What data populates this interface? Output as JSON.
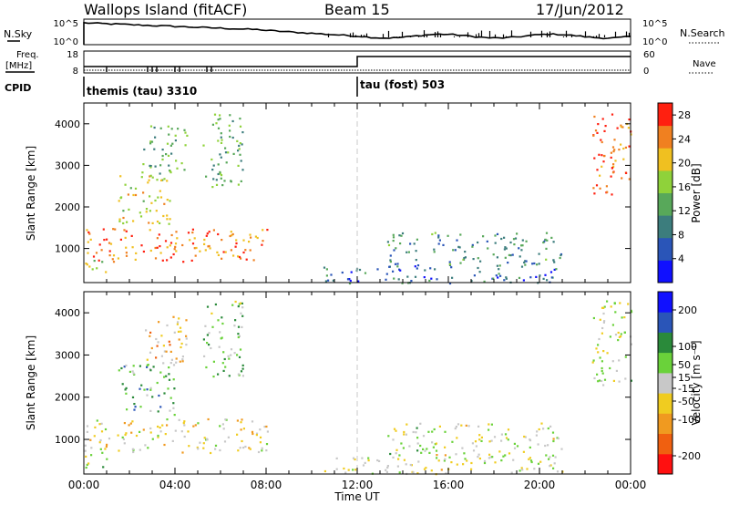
{
  "header": {
    "station": "Wallops Island (fitACF)",
    "beam": "Beam 15",
    "date": "17/Jun/2012"
  },
  "top_panel": {
    "nsky_label": "N.Sky",
    "nsky_ticks": [
      "10^5",
      "10^0"
    ],
    "nsearch_label": "N.Search",
    "nsearch_ticks": [
      "10^5",
      "10^0"
    ],
    "freq_label": "Freq.",
    "freq_unit": "[MHz]",
    "freq_ticks": [
      "18",
      "8"
    ],
    "nave_label": "Nave",
    "nave_ticks": [
      "60",
      "0"
    ],
    "cpid_label": "CPID",
    "cpid_entries": [
      {
        "name": "themis (tau) 3310",
        "start_hour": 0
      },
      {
        "name": "tau (fost) 503",
        "start_hour": 12
      }
    ]
  },
  "chart_data": [
    {
      "type": "heatmap",
      "panel": "power",
      "ylabel": "Slant Range [km]",
      "y_ticks": [
        "1000",
        "2000",
        "3000",
        "4000"
      ],
      "ylim": [
        180,
        4500
      ],
      "xlim": [
        0,
        24
      ],
      "colorbar": {
        "label": "Power [dB]",
        "ticks": [
          "4",
          "8",
          "12",
          "16",
          "20",
          "24",
          "28"
        ],
        "colors": [
          "#1010ff",
          "#2a55b8",
          "#3c7d7d",
          "#58a85a",
          "#8fd23a",
          "#f0c020",
          "#f08020",
          "#ff2010"
        ],
        "range": [
          0,
          30
        ]
      },
      "regions": [
        {
          "t0": 0.0,
          "t1": 8.1,
          "r0": 700,
          "r1": 1500,
          "level": 0.8
        },
        {
          "t0": 0.0,
          "t1": 1.0,
          "r0": 350,
          "r1": 800,
          "level": 0.55
        },
        {
          "t0": 1.5,
          "t1": 4.0,
          "r0": 1600,
          "r1": 2800,
          "level": 0.65
        },
        {
          "t0": 2.5,
          "t1": 4.5,
          "r0": 2800,
          "r1": 4000,
          "level": 0.45
        },
        {
          "t0": 5.2,
          "t1": 7.0,
          "r0": 2500,
          "r1": 4300,
          "level": 0.45
        },
        {
          "t0": 13.3,
          "t1": 21.0,
          "r0": 600,
          "r1": 1400,
          "level": 0.35
        },
        {
          "t0": 10.5,
          "t1": 21.0,
          "r0": 180,
          "r1": 600,
          "level": 0.25
        },
        {
          "t0": 22.3,
          "t1": 24.0,
          "r0": 2300,
          "r1": 4300,
          "level": 0.85
        }
      ]
    },
    {
      "type": "heatmap",
      "panel": "velocity",
      "ylabel": "Slant Range [km]",
      "y_ticks": [
        "1000",
        "2000",
        "3000",
        "4000"
      ],
      "ylim": [
        180,
        4500
      ],
      "xlim": [
        0,
        24
      ],
      "xlabel": "Time UT",
      "x_ticks": [
        "00:00",
        "04:00",
        "08:00",
        "12:00",
        "16:00",
        "20:00",
        "00:00"
      ],
      "colorbar": {
        "label": "Velocity [m s⁻¹]",
        "ticks": [
          "-200",
          "-100",
          "-50",
          "-15",
          "15",
          "50",
          "100",
          "200"
        ],
        "colors": [
          "#ff1010",
          "#f06010",
          "#f09a20",
          "#f0cc20",
          "#c8c8c8",
          "#6ad23a",
          "#2a8a3a",
          "#2a55b8",
          "#1010ff"
        ],
        "range": [
          -250,
          250
        ]
      },
      "regions": [
        {
          "t0": 0.0,
          "t1": 8.1,
          "r0": 700,
          "r1": 1500,
          "level": 0.45
        },
        {
          "t0": 0.0,
          "t1": 1.0,
          "r0": 350,
          "r1": 800,
          "level": 0.5
        },
        {
          "t0": 1.5,
          "t1": 4.0,
          "r0": 1600,
          "r1": 2800,
          "level": 0.65
        },
        {
          "t0": 2.5,
          "t1": 4.5,
          "r0": 2800,
          "r1": 4000,
          "level": 0.35
        },
        {
          "t0": 5.2,
          "t1": 7.0,
          "r0": 2500,
          "r1": 4300,
          "level": 0.6
        },
        {
          "t0": 13.3,
          "t1": 21.0,
          "r0": 600,
          "r1": 1400,
          "level": 0.5
        },
        {
          "t0": 10.5,
          "t1": 21.0,
          "r0": 180,
          "r1": 600,
          "level": 0.5
        },
        {
          "t0": 22.3,
          "t1": 24.0,
          "r0": 2300,
          "r1": 4300,
          "level": 0.5
        }
      ]
    }
  ]
}
